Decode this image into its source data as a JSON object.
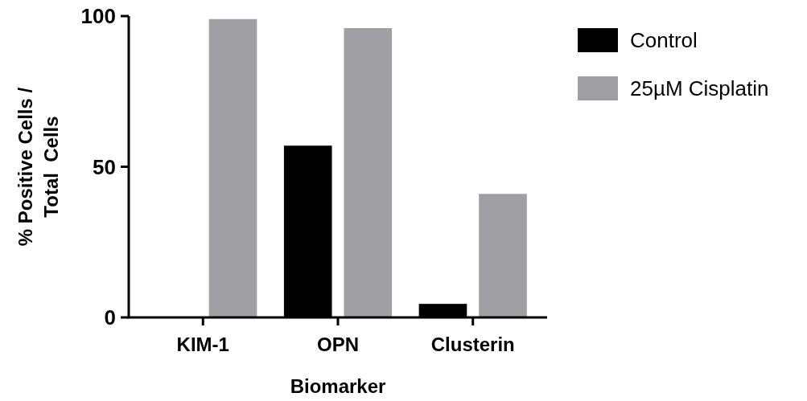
{
  "chart_data": {
    "type": "bar",
    "xlabel": "Biomarker",
    "ylabel": "% Positive Cells / Total  Cells",
    "categories": [
      "KIM-1",
      "OPN",
      "Clusterin"
    ],
    "series": [
      {
        "name": "Control",
        "color": "#000000",
        "values": [
          0,
          57,
          4.5
        ]
      },
      {
        "name": "25µM Cisplatin",
        "color": "#a0a0a4",
        "values": [
          99,
          96,
          41
        ]
      }
    ],
    "ylim": [
      0,
      100
    ],
    "yticks": [
      0,
      50,
      100
    ],
    "legend": "top right",
    "grid": false
  }
}
